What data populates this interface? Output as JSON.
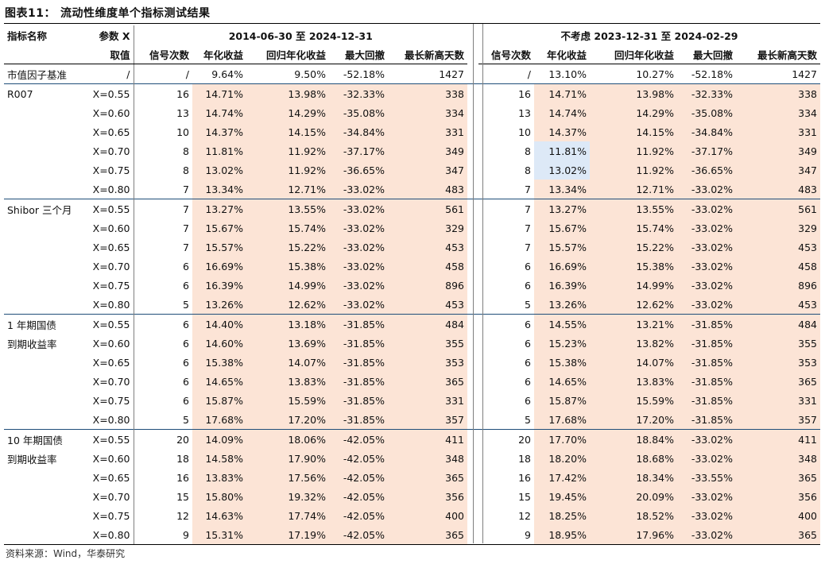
{
  "title": {
    "label": "图表11：",
    "text": "流动性维度单个指标测试结果"
  },
  "header": {
    "indicator_name": "指标名称",
    "param": "参数 X",
    "param_value": "取值",
    "period1": "2014-06-30 至 2024-12-31",
    "period2": "不考虑 2023-12-31 至 2024-02-29",
    "cols": [
      "信号次数",
      "年化收益",
      "回归年化收益",
      "最大回撤",
      "最长新高天数"
    ]
  },
  "baseline": {
    "name": "市值因子基准",
    "x": "/",
    "p1": [
      "/",
      "9.64%",
      "9.50%",
      "-52.18%",
      "1427"
    ],
    "p2": [
      "/",
      "13.10%",
      "10.27%",
      "-52.18%",
      "1427"
    ]
  },
  "groups": [
    {
      "name_lines": [
        "R007"
      ],
      "rows": [
        {
          "x": "X=0.55",
          "p1": [
            "16",
            "14.71%",
            "13.98%",
            "-32.33%",
            "338"
          ],
          "p2": [
            "16",
            "14.71%",
            "13.98%",
            "-32.33%",
            "338"
          ]
        },
        {
          "x": "X=0.60",
          "p1": [
            "13",
            "14.74%",
            "14.29%",
            "-35.08%",
            "334"
          ],
          "p2": [
            "13",
            "14.74%",
            "14.29%",
            "-35.08%",
            "334"
          ]
        },
        {
          "x": "X=0.65",
          "p1": [
            "10",
            "14.37%",
            "14.15%",
            "-34.84%",
            "331"
          ],
          "p2": [
            "10",
            "14.37%",
            "14.15%",
            "-34.84%",
            "331"
          ]
        },
        {
          "x": "X=0.70",
          "p1": [
            "8",
            "11.81%",
            "11.92%",
            "-37.17%",
            "349"
          ],
          "p2": [
            "8",
            "11.81%",
            "11.92%",
            "-37.17%",
            "349"
          ]
        },
        {
          "x": "X=0.75",
          "p1": [
            "8",
            "13.02%",
            "11.92%",
            "-36.65%",
            "347"
          ],
          "p2": [
            "8",
            "13.02%",
            "11.92%",
            "-36.65%",
            "347"
          ]
        },
        {
          "x": "X=0.80",
          "p1": [
            "7",
            "13.34%",
            "12.71%",
            "-33.02%",
            "483"
          ],
          "p2": [
            "7",
            "13.34%",
            "12.71%",
            "-33.02%",
            "483"
          ]
        }
      ]
    },
    {
      "name_lines": [
        "Shibor 三个月"
      ],
      "rows": [
        {
          "x": "X=0.55",
          "p1": [
            "7",
            "13.27%",
            "13.55%",
            "-33.02%",
            "561"
          ],
          "p2": [
            "7",
            "13.27%",
            "13.55%",
            "-33.02%",
            "561"
          ]
        },
        {
          "x": "X=0.60",
          "p1": [
            "7",
            "15.67%",
            "15.74%",
            "-33.02%",
            "329"
          ],
          "p2": [
            "7",
            "15.67%",
            "15.74%",
            "-33.02%",
            "329"
          ]
        },
        {
          "x": "X=0.65",
          "p1": [
            "7",
            "15.57%",
            "15.22%",
            "-33.02%",
            "453"
          ],
          "p2": [
            "7",
            "15.57%",
            "15.22%",
            "-33.02%",
            "453"
          ]
        },
        {
          "x": "X=0.70",
          "p1": [
            "6",
            "16.69%",
            "15.38%",
            "-33.02%",
            "458"
          ],
          "p2": [
            "6",
            "16.69%",
            "15.38%",
            "-33.02%",
            "458"
          ]
        },
        {
          "x": "X=0.75",
          "p1": [
            "6",
            "16.39%",
            "14.99%",
            "-33.02%",
            "896"
          ],
          "p2": [
            "6",
            "16.39%",
            "14.99%",
            "-33.02%",
            "896"
          ]
        },
        {
          "x": "X=0.80",
          "p1": [
            "5",
            "13.26%",
            "12.62%",
            "-33.02%",
            "453"
          ],
          "p2": [
            "5",
            "13.26%",
            "12.62%",
            "-33.02%",
            "453"
          ]
        }
      ]
    },
    {
      "name_lines": [
        "1 年期国债",
        "到期收益率"
      ],
      "rows": [
        {
          "x": "X=0.55",
          "p1": [
            "6",
            "14.40%",
            "13.18%",
            "-31.85%",
            "484"
          ],
          "p2": [
            "6",
            "14.55%",
            "13.21%",
            "-31.85%",
            "484"
          ]
        },
        {
          "x": "X=0.60",
          "p1": [
            "6",
            "14.60%",
            "13.69%",
            "-31.85%",
            "355"
          ],
          "p2": [
            "6",
            "15.23%",
            "13.82%",
            "-31.85%",
            "355"
          ]
        },
        {
          "x": "X=0.65",
          "p1": [
            "6",
            "15.38%",
            "14.07%",
            "-31.85%",
            "353"
          ],
          "p2": [
            "6",
            "15.38%",
            "14.07%",
            "-31.85%",
            "353"
          ]
        },
        {
          "x": "X=0.70",
          "p1": [
            "6",
            "14.65%",
            "13.83%",
            "-31.85%",
            "365"
          ],
          "p2": [
            "6",
            "14.65%",
            "13.83%",
            "-31.85%",
            "365"
          ]
        },
        {
          "x": "X=0.75",
          "p1": [
            "6",
            "15.87%",
            "15.59%",
            "-31.85%",
            "331"
          ],
          "p2": [
            "6",
            "15.87%",
            "15.59%",
            "-31.85%",
            "331"
          ]
        },
        {
          "x": "X=0.80",
          "p1": [
            "5",
            "17.68%",
            "17.20%",
            "-31.85%",
            "357"
          ],
          "p2": [
            "5",
            "17.68%",
            "17.20%",
            "-31.85%",
            "357"
          ]
        }
      ]
    },
    {
      "name_lines": [
        "10 年期国债",
        "到期收益率"
      ],
      "rows": [
        {
          "x": "X=0.55",
          "p1": [
            "20",
            "14.09%",
            "18.06%",
            "-42.05%",
            "411"
          ],
          "p2": [
            "20",
            "17.70%",
            "18.84%",
            "-33.02%",
            "411"
          ]
        },
        {
          "x": "X=0.60",
          "p1": [
            "18",
            "14.58%",
            "17.90%",
            "-42.05%",
            "348"
          ],
          "p2": [
            "18",
            "18.20%",
            "18.68%",
            "-33.02%",
            "348"
          ]
        },
        {
          "x": "X=0.65",
          "p1": [
            "16",
            "13.83%",
            "17.56%",
            "-42.05%",
            "365"
          ],
          "p2": [
            "16",
            "17.42%",
            "18.34%",
            "-33.55%",
            "365"
          ]
        },
        {
          "x": "X=0.70",
          "p1": [
            "15",
            "15.80%",
            "19.32%",
            "-42.05%",
            "356"
          ],
          "p2": [
            "15",
            "19.45%",
            "20.09%",
            "-33.02%",
            "356"
          ]
        },
        {
          "x": "X=0.75",
          "p1": [
            "12",
            "14.63%",
            "17.74%",
            "-42.05%",
            "400"
          ],
          "p2": [
            "12",
            "18.25%",
            "18.52%",
            "-33.02%",
            "400"
          ]
        },
        {
          "x": "X=0.80",
          "p1": [
            "9",
            "15.31%",
            "17.19%",
            "-42.05%",
            "365"
          ],
          "p2": [
            "9",
            "18.95%",
            "17.96%",
            "-33.02%",
            "365"
          ]
        }
      ]
    }
  ],
  "highlight_colors": {
    "pink": "#fce4d6",
    "blue": "#dde9f7"
  },
  "footer": "资料来源：Wind，华泰研究"
}
